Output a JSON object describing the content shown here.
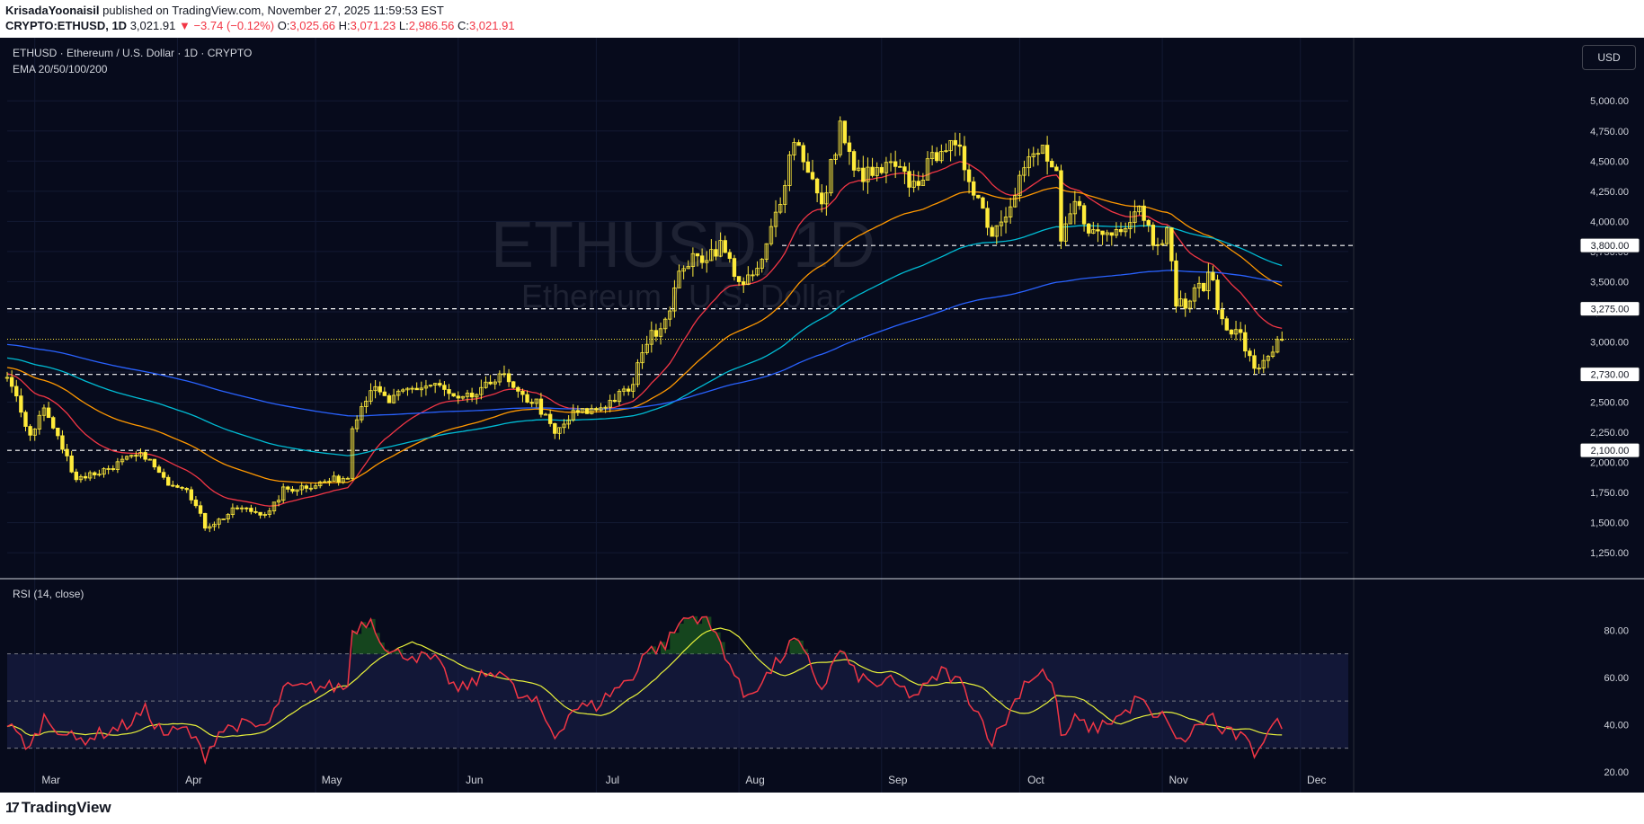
{
  "header": {
    "author": "KrisadaYoonaisil",
    "published": "published on TradingView.com, November 27, 2025 11:59:53 EST",
    "symbol_line": "CRYPTO:ETHUSD, 1D",
    "last": "3,021.91",
    "change": "−3.74 (−0.12%)",
    "o_label": "O:",
    "o": "3,025.66",
    "h_label": "H:",
    "h": "3,071.23",
    "l_label": "L:",
    "l": "2,986.56",
    "c_label": "C:",
    "c": "3,021.91"
  },
  "legend": {
    "title": "ETHUSD · Ethereum / U.S. Dollar · 1D · CRYPTO",
    "ema": "EMA 20/50/100/200",
    "rsi": "RSI (14, close)"
  },
  "watermark": {
    "symbol": "ETHUSD, 1D",
    "name": "Ethereum / U.S. Dollar"
  },
  "currency_button": "USD",
  "footer": {
    "logo": "TradingView",
    "logo_mark": "17"
  },
  "colors": {
    "background": "#070b1c",
    "candle": "#ffeb3b",
    "ema20": "#f23645",
    "ema50": "#ff9800",
    "ema100": "#00bcd4",
    "ema200": "#2962ff",
    "rsi": "#f23645",
    "rsi_ma": "#e8f13b",
    "rsi_band": "#1a1f4a"
  },
  "chart_data": [
    {
      "type": "candlestick",
      "title": "ETHUSD · Ethereum / U.S. Dollar · 1D · CRYPTO",
      "x_labels": [
        "Mar",
        "Apr",
        "May",
        "Jun",
        "Jul",
        "Aug",
        "Sep",
        "Oct",
        "Nov",
        "Dec"
      ],
      "y_ticks": [
        "5,000.00",
        "4,750.00",
        "4,500.00",
        "4,250.00",
        "4,000.00",
        "3,750.00",
        "3,500.00",
        "3,250.00",
        "3,000.00",
        "2,750.00",
        "2,500.00",
        "2,250.00",
        "2,000.00",
        "1,750.00",
        "1,500.00",
        "1,250.00"
      ],
      "ylim": [
        1050,
        5300
      ],
      "start_date": "2025-02-23",
      "last_price": 3021.91,
      "last_price_label": "3000",
      "horizontal_levels": [
        {
          "value": 3800,
          "label": "3800",
          "price": "3,800.00"
        },
        {
          "value": 3275,
          "label": "3275",
          "price": "3,275.00"
        },
        {
          "value": 2730,
          "label": "2730",
          "price": "2,730.00"
        },
        {
          "value": 2100,
          "label": "2100",
          "price": "2,100.00"
        }
      ],
      "close_anchors": [
        [
          "2025-02-23",
          2700
        ],
        [
          "2025-02-28",
          2230
        ],
        [
          "2025-03-03",
          2450
        ],
        [
          "2025-03-10",
          1870
        ],
        [
          "2025-03-15",
          1920
        ],
        [
          "2025-03-21",
          2020
        ],
        [
          "2025-03-25",
          2060
        ],
        [
          "2025-03-29",
          1850
        ],
        [
          "2025-04-03",
          1800
        ],
        [
          "2025-04-07",
          1470
        ],
        [
          "2025-04-10",
          1520
        ],
        [
          "2025-04-14",
          1620
        ],
        [
          "2025-04-18",
          1590
        ],
        [
          "2025-04-21",
          1580
        ],
        [
          "2025-04-24",
          1770
        ],
        [
          "2025-05-01",
          1820
        ],
        [
          "2025-05-08",
          1880
        ],
        [
          "2025-05-09",
          2320
        ],
        [
          "2025-05-13",
          2620
        ],
        [
          "2025-05-17",
          2500
        ],
        [
          "2025-05-21",
          2600
        ],
        [
          "2025-05-27",
          2650
        ],
        [
          "2025-06-01",
          2500
        ],
        [
          "2025-06-06",
          2580
        ],
        [
          "2025-06-10",
          2750
        ],
        [
          "2025-06-14",
          2550
        ],
        [
          "2025-06-18",
          2500
        ],
        [
          "2025-06-22",
          2230
        ],
        [
          "2025-06-26",
          2400
        ],
        [
          "2025-07-01",
          2440
        ],
        [
          "2025-07-05",
          2530
        ],
        [
          "2025-07-09",
          2630
        ],
        [
          "2025-07-11",
          2950
        ],
        [
          "2025-07-16",
          3200
        ],
        [
          "2025-07-20",
          3650
        ],
        [
          "2025-07-24",
          3700
        ],
        [
          "2025-07-28",
          3800
        ],
        [
          "2025-08-02",
          3450
        ],
        [
          "2025-08-06",
          3650
        ],
        [
          "2025-08-10",
          4200
        ],
        [
          "2025-08-13",
          4700
        ],
        [
          "2025-08-16",
          4450
        ],
        [
          "2025-08-19",
          4100
        ],
        [
          "2025-08-23",
          4800
        ],
        [
          "2025-08-26",
          4400
        ],
        [
          "2025-08-30",
          4380
        ],
        [
          "2025-09-03",
          4450
        ],
        [
          "2025-09-08",
          4300
        ],
        [
          "2025-09-12",
          4500
        ],
        [
          "2025-09-14",
          4650
        ],
        [
          "2025-09-18",
          4550
        ],
        [
          "2025-09-22",
          4200
        ],
        [
          "2025-09-25",
          3900
        ],
        [
          "2025-09-28",
          4100
        ],
        [
          "2025-10-02",
          4450
        ],
        [
          "2025-10-06",
          4600
        ],
        [
          "2025-10-09",
          4350
        ],
        [
          "2025-10-10",
          3800
        ],
        [
          "2025-10-13",
          4150
        ],
        [
          "2025-10-17",
          3900
        ],
        [
          "2025-10-21",
          3900
        ],
        [
          "2025-10-24",
          4000
        ],
        [
          "2025-10-27",
          4150
        ],
        [
          "2025-10-30",
          3850
        ],
        [
          "2025-11-02",
          3900
        ],
        [
          "2025-11-04",
          3350
        ],
        [
          "2025-11-06",
          3300
        ],
        [
          "2025-11-09",
          3450
        ],
        [
          "2025-11-12",
          3550
        ],
        [
          "2025-11-13",
          3250
        ],
        [
          "2025-11-16",
          3100
        ],
        [
          "2025-11-18",
          3050
        ],
        [
          "2025-11-21",
          2750
        ],
        [
          "2025-11-24",
          2900
        ],
        [
          "2025-11-27",
          3021
        ]
      ],
      "ema_labels": [
        "EMA 20",
        "EMA 50",
        "EMA 100",
        "EMA 200"
      ]
    },
    {
      "type": "line",
      "title": "RSI (14, close)",
      "y_ticks": [
        "80.00",
        "60.00",
        "40.00",
        "20.00"
      ],
      "ylim": [
        15,
        95
      ],
      "band": [
        30,
        70
      ],
      "midline": 50,
      "rsi_anchors": [
        [
          "2025-02-23",
          40
        ],
        [
          "2025-02-28",
          30
        ],
        [
          "2025-03-03",
          43
        ],
        [
          "2025-03-10",
          33
        ],
        [
          "2025-03-15",
          36
        ],
        [
          "2025-03-21",
          40
        ],
        [
          "2025-03-25",
          46
        ],
        [
          "2025-03-29",
          36
        ],
        [
          "2025-04-03",
          38
        ],
        [
          "2025-04-07",
          27
        ],
        [
          "2025-04-10",
          37
        ],
        [
          "2025-04-14",
          40
        ],
        [
          "2025-04-18",
          39
        ],
        [
          "2025-04-21",
          40
        ],
        [
          "2025-04-24",
          55
        ],
        [
          "2025-05-01",
          56
        ],
        [
          "2025-05-08",
          56
        ],
        [
          "2025-05-09",
          80
        ],
        [
          "2025-05-13",
          85
        ],
        [
          "2025-05-17",
          70
        ],
        [
          "2025-05-21",
          70
        ],
        [
          "2025-05-27",
          67
        ],
        [
          "2025-06-01",
          54
        ],
        [
          "2025-06-06",
          60
        ],
        [
          "2025-06-10",
          64
        ],
        [
          "2025-06-14",
          52
        ],
        [
          "2025-06-18",
          49
        ],
        [
          "2025-06-22",
          35
        ],
        [
          "2025-06-26",
          47
        ],
        [
          "2025-07-01",
          48
        ],
        [
          "2025-07-05",
          55
        ],
        [
          "2025-07-09",
          60
        ],
        [
          "2025-07-11",
          70
        ],
        [
          "2025-07-16",
          74
        ],
        [
          "2025-07-20",
          85
        ],
        [
          "2025-07-24",
          86
        ],
        [
          "2025-07-28",
          75
        ],
        [
          "2025-08-02",
          52
        ],
        [
          "2025-08-06",
          58
        ],
        [
          "2025-08-10",
          68
        ],
        [
          "2025-08-13",
          76
        ],
        [
          "2025-08-16",
          67
        ],
        [
          "2025-08-19",
          55
        ],
        [
          "2025-08-23",
          72
        ],
        [
          "2025-08-26",
          62
        ],
        [
          "2025-08-30",
          57
        ],
        [
          "2025-09-03",
          58
        ],
        [
          "2025-09-08",
          52
        ],
        [
          "2025-09-12",
          58
        ],
        [
          "2025-09-14",
          63
        ],
        [
          "2025-09-18",
          58
        ],
        [
          "2025-09-22",
          45
        ],
        [
          "2025-09-25",
          33
        ],
        [
          "2025-09-28",
          42
        ],
        [
          "2025-10-02",
          58
        ],
        [
          "2025-10-06",
          63
        ],
        [
          "2025-10-09",
          52
        ],
        [
          "2025-10-10",
          33
        ],
        [
          "2025-10-13",
          42
        ],
        [
          "2025-10-17",
          38
        ],
        [
          "2025-10-21",
          42
        ],
        [
          "2025-10-24",
          45
        ],
        [
          "2025-10-27",
          52
        ],
        [
          "2025-10-30",
          42
        ],
        [
          "2025-11-02",
          44
        ],
        [
          "2025-11-04",
          32
        ],
        [
          "2025-11-06",
          34
        ],
        [
          "2025-11-09",
          40
        ],
        [
          "2025-11-12",
          44
        ],
        [
          "2025-11-13",
          38
        ],
        [
          "2025-11-16",
          36
        ],
        [
          "2025-11-18",
          35
        ],
        [
          "2025-11-21",
          28
        ],
        [
          "2025-11-24",
          38
        ],
        [
          "2025-11-27",
          41
        ]
      ]
    }
  ]
}
